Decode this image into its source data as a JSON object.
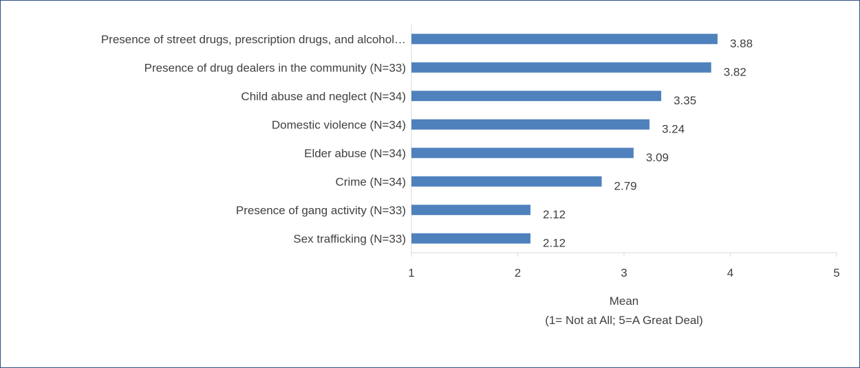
{
  "chart_data": {
    "type": "bar",
    "orientation": "horizontal",
    "title": "",
    "categories": [
      "Presence of street drugs, prescription drugs, and alcohol…",
      "Presence of drug dealers in the community (N=33)",
      "Child abuse and neglect (N=34)",
      "Domestic violence (N=34)",
      "Elder abuse (N=34)",
      "Crime (N=34)",
      "Presence of gang activity (N=33)",
      "Sex trafficking (N=33)"
    ],
    "values": [
      3.88,
      3.82,
      3.35,
      3.24,
      3.09,
      2.79,
      2.12,
      2.12
    ],
    "value_labels": [
      "3.88",
      "3.82",
      "3.35",
      "3.24",
      "3.09",
      "2.79",
      "2.12",
      "2.12"
    ],
    "xlim": [
      1,
      5
    ],
    "xticks": [
      "1",
      "2",
      "3",
      "4",
      "5"
    ],
    "xlabel": "Mean",
    "xlabel_sub": "(1= Not at All; 5=A Great Deal)",
    "bar_color": "#4f81bd",
    "grid": false,
    "legend": "none"
  }
}
